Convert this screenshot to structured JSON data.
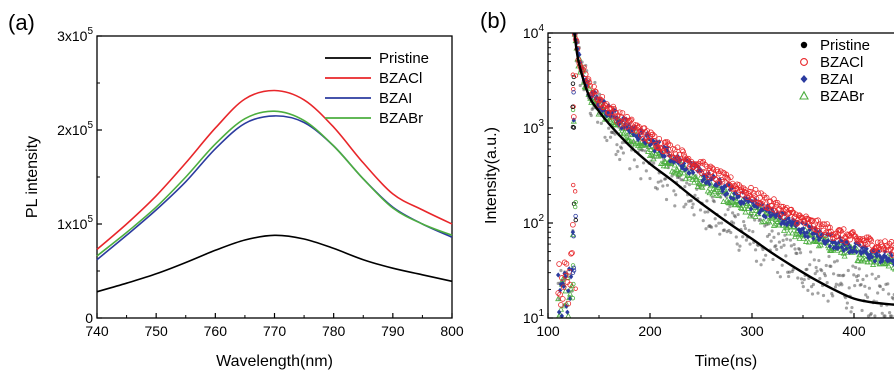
{
  "chart_data": [
    {
      "type": "line",
      "panel_label": "(a)",
      "xlabel": "Wavelength(nm)",
      "ylabel": "PL intensity",
      "xlim": [
        740,
        800
      ],
      "ylim": [
        0,
        300000
      ],
      "xticks": [
        "740",
        "750",
        "760",
        "770",
        "780",
        "790",
        "800"
      ],
      "yticks": [
        {
          "value": 0,
          "base": "0",
          "exp": ""
        },
        {
          "value": 100000,
          "base": "1x10",
          "exp": "5"
        },
        {
          "value": 200000,
          "base": "2x10",
          "exp": "5"
        },
        {
          "value": 300000,
          "base": "3x10",
          "exp": "5"
        }
      ],
      "legend_position": "top-right",
      "series": [
        {
          "name": "Pristine",
          "color": "#000000",
          "x": [
            740,
            745,
            750,
            755,
            760,
            765,
            770,
            775,
            780,
            785,
            790,
            795,
            800
          ],
          "y": [
            28000,
            37000,
            47000,
            59000,
            72000,
            83000,
            88000,
            84000,
            74000,
            62000,
            53000,
            46000,
            39000
          ]
        },
        {
          "name": "BZACl",
          "color": "#e8262a",
          "x": [
            740,
            745,
            750,
            755,
            760,
            765,
            770,
            775,
            780,
            785,
            790,
            795,
            800
          ],
          "y": [
            73000,
            100000,
            130000,
            165000,
            202000,
            233000,
            242000,
            232000,
            203000,
            165000,
            132000,
            115000,
            100000
          ]
        },
        {
          "name": "BZAI",
          "color": "#2b3b9f",
          "x": [
            740,
            745,
            750,
            755,
            760,
            765,
            770,
            775,
            780,
            785,
            790,
            795,
            800
          ],
          "y": [
            62000,
            88000,
            115000,
            145000,
            180000,
            207000,
            215000,
            208000,
            183000,
            148000,
            118000,
            100000,
            86000
          ]
        },
        {
          "name": "BZABr",
          "color": "#4cae3f",
          "x": [
            740,
            745,
            750,
            755,
            760,
            765,
            770,
            775,
            780,
            785,
            790,
            795,
            800
          ],
          "y": [
            66000,
            91000,
            118000,
            150000,
            185000,
            212000,
            220000,
            210000,
            183000,
            148000,
            117000,
            100000,
            88000
          ]
        }
      ]
    },
    {
      "type": "scatter",
      "panel_label": "(b)",
      "xlabel": "Time(ns)",
      "ylabel": "Intensity(a.u.)",
      "xlim": [
        100,
        450
      ],
      "ylim": [
        10,
        10000
      ],
      "yscale": "log",
      "xticks": [
        "100",
        "200",
        "300",
        "400"
      ],
      "yticks": [
        {
          "value": 10,
          "base": "10",
          "exp": "1"
        },
        {
          "value": 100,
          "base": "10",
          "exp": "2"
        },
        {
          "value": 1000,
          "base": "10",
          "exp": "3"
        },
        {
          "value": 10000,
          "base": "10",
          "exp": "4"
        }
      ],
      "legend_position": "top-right",
      "series": [
        {
          "name": "Pristine",
          "marker": "filled-circle",
          "color": "#000000",
          "x": [
            110,
            118,
            124,
            126,
            130,
            140,
            150,
            160,
            170,
            180,
            200,
            220,
            240,
            260,
            280,
            300,
            320,
            340,
            360,
            380,
            400,
            420,
            450
          ],
          "y": [
            18,
            20,
            25,
            10000,
            5000,
            2200,
            1500,
            1100,
            830,
            650,
            420,
            290,
            200,
            140,
            100,
            72,
            52,
            40,
            30,
            24,
            20,
            16,
            14
          ]
        },
        {
          "name": "BZACl",
          "marker": "open-circle",
          "color": "#e8262a",
          "x": [
            110,
            118,
            124,
            126,
            130,
            140,
            150,
            160,
            170,
            180,
            200,
            220,
            240,
            260,
            280,
            300,
            320,
            340,
            360,
            380,
            400,
            420,
            450
          ],
          "y": [
            22,
            25,
            30,
            10000,
            5800,
            2800,
            2000,
            1600,
            1300,
            1100,
            800,
            600,
            450,
            340,
            260,
            200,
            155,
            120,
            95,
            80,
            68,
            60,
            50
          ]
        },
        {
          "name": "BZAI",
          "marker": "filled-diamond",
          "color": "#2b3b9f",
          "x": [
            110,
            118,
            124,
            126,
            130,
            140,
            150,
            160,
            170,
            180,
            200,
            220,
            240,
            260,
            280,
            300,
            320,
            340,
            360,
            380,
            400,
            420,
            450
          ],
          "y": [
            18,
            20,
            24,
            10000,
            5500,
            2600,
            1850,
            1500,
            1200,
            1000,
            720,
            520,
            380,
            280,
            210,
            160,
            125,
            98,
            78,
            64,
            54,
            46,
            38
          ]
        },
        {
          "name": "BZABr",
          "marker": "open-triangle",
          "color": "#4cae3f",
          "x": [
            110,
            118,
            124,
            126,
            130,
            140,
            150,
            160,
            170,
            180,
            200,
            220,
            240,
            260,
            280,
            300,
            320,
            340,
            360,
            380,
            400,
            420,
            450
          ],
          "y": [
            16,
            18,
            22,
            10000,
            5000,
            2300,
            1600,
            1250,
            1000,
            820,
            580,
            420,
            310,
            230,
            175,
            135,
            105,
            84,
            68,
            57,
            48,
            42,
            36
          ]
        }
      ],
      "fit_line": {
        "name": "",
        "color": "#000000",
        "x": [
          126,
          130,
          140,
          150,
          160,
          180,
          200,
          220,
          240,
          260,
          280,
          300,
          320,
          340,
          360,
          380,
          400,
          420,
          450
        ],
        "y": [
          10000,
          5000,
          2200,
          1500,
          1100,
          650,
          420,
          290,
          195,
          135,
          95,
          68,
          48,
          35,
          26,
          20,
          16,
          14.5,
          13.5
        ]
      }
    }
  ]
}
